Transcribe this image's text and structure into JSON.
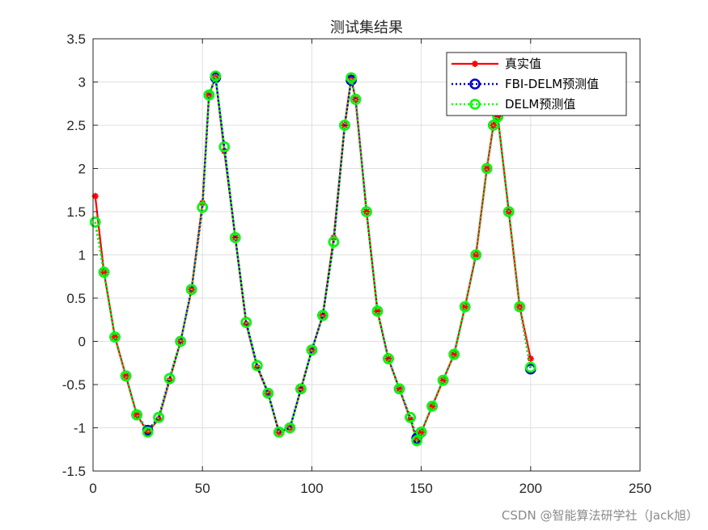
{
  "chart_data": {
    "type": "line",
    "title": "测试集结果",
    "xlabel": "",
    "ylabel": "",
    "xlim": [
      0,
      250
    ],
    "ylim": [
      -1.5,
      3.5
    ],
    "xticks": [
      0,
      50,
      100,
      150,
      200,
      250
    ],
    "yticks": [
      -1.5,
      -1,
      -0.5,
      0,
      0.5,
      1,
      1.5,
      2,
      2.5,
      3,
      3.5
    ],
    "grid": true,
    "legend_location": "top-right",
    "x": [
      1,
      5,
      10,
      15,
      20,
      25,
      30,
      35,
      40,
      45,
      50,
      53,
      56,
      60,
      65,
      70,
      75,
      80,
      85,
      90,
      95,
      100,
      105,
      110,
      115,
      118,
      120,
      125,
      130,
      135,
      140,
      145,
      148,
      150,
      155,
      160,
      165,
      170,
      175,
      180,
      183,
      185,
      190,
      195,
      200
    ],
    "series": [
      {
        "name": "真实值",
        "color": "#ff0000",
        "style": "solid",
        "marker": "star",
        "values": [
          1.68,
          0.8,
          0.05,
          -0.4,
          -0.85,
          -1.05,
          -0.9,
          -0.45,
          0.0,
          0.6,
          1.6,
          2.85,
          3.05,
          2.2,
          1.2,
          0.2,
          -0.3,
          -0.6,
          -1.05,
          -1.0,
          -0.55,
          -0.1,
          0.3,
          1.2,
          2.5,
          3.05,
          2.8,
          1.5,
          0.35,
          -0.2,
          -0.55,
          -0.9,
          -1.15,
          -1.05,
          -0.75,
          -0.45,
          -0.15,
          0.4,
          1.0,
          2.0,
          2.5,
          2.6,
          1.5,
          0.4,
          -0.2
        ]
      },
      {
        "name": "FBI-DELM预测值",
        "color": "#0000cc",
        "style": "dotted",
        "marker": "circle",
        "values": [
          1.38,
          0.8,
          0.05,
          -0.4,
          -0.85,
          -1.03,
          -0.88,
          -0.43,
          0.0,
          0.6,
          1.55,
          2.85,
          3.05,
          2.25,
          1.2,
          0.22,
          -0.28,
          -0.6,
          -1.05,
          -1.0,
          -0.55,
          -0.1,
          0.3,
          1.15,
          2.5,
          3.02,
          2.8,
          1.5,
          0.35,
          -0.2,
          -0.55,
          -0.88,
          -1.12,
          -1.05,
          -0.75,
          -0.45,
          -0.15,
          0.4,
          1.0,
          2.0,
          2.5,
          2.6,
          1.5,
          0.4,
          -0.32
        ]
      },
      {
        "name": "DELM预测值",
        "color": "#00ff00",
        "style": "dotted",
        "marker": "circle",
        "values": [
          1.38,
          0.8,
          0.05,
          -0.4,
          -0.85,
          -1.05,
          -0.88,
          -0.43,
          0.0,
          0.6,
          1.55,
          2.85,
          3.07,
          2.25,
          1.2,
          0.22,
          -0.28,
          -0.6,
          -1.05,
          -1.0,
          -0.55,
          -0.1,
          0.3,
          1.15,
          2.5,
          3.05,
          2.8,
          1.5,
          0.35,
          -0.2,
          -0.55,
          -0.88,
          -1.15,
          -1.05,
          -0.75,
          -0.45,
          -0.15,
          0.4,
          1.0,
          2.0,
          2.5,
          2.6,
          1.5,
          0.4,
          -0.3
        ]
      }
    ]
  },
  "watermark": "CSDN @智能算法研学社（Jack旭）"
}
